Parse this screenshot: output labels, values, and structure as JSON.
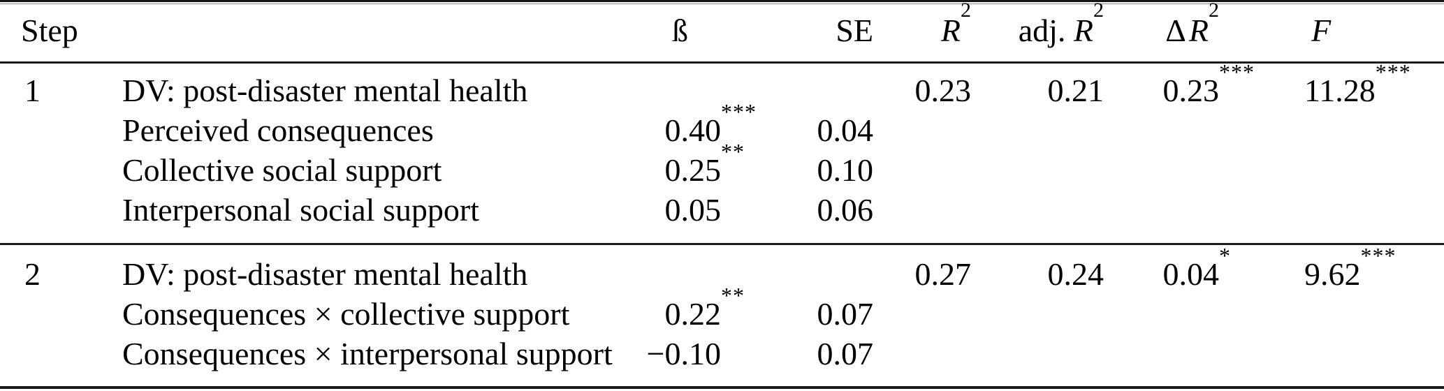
{
  "colors": {
    "background": "#ffffff",
    "text": "#000000",
    "rule_thick": "#161616",
    "rule_thin": "#8f8f8f"
  },
  "table": {
    "headers": {
      "step": "Step",
      "beta": "ß",
      "se": "SE",
      "r2_base": "R",
      "r2_sup": "2",
      "adj_prefix": "adj.",
      "adj_base": "R",
      "adj_sup": "2",
      "delta_prefix": "Δ",
      "delta_base": "R",
      "delta_sup": "2",
      "f": "F"
    },
    "blocks": [
      {
        "step": "1",
        "rows": [
          {
            "label": "DV: post-disaster mental health",
            "beta": "",
            "beta_stars": "",
            "se": "",
            "r2": "0.23",
            "adj_r2": "0.21",
            "delta_r2": "0.23",
            "delta_r2_stars": "***",
            "f": "11.28",
            "f_stars": "***"
          },
          {
            "label": "Perceived consequences",
            "beta": "0.40",
            "beta_stars": "***",
            "se": "0.04",
            "r2": "",
            "adj_r2": "",
            "delta_r2": "",
            "delta_r2_stars": "",
            "f": "",
            "f_stars": ""
          },
          {
            "label": "Collective social support",
            "beta": "0.25",
            "beta_stars": "**",
            "se": "0.10",
            "r2": "",
            "adj_r2": "",
            "delta_r2": "",
            "delta_r2_stars": "",
            "f": "",
            "f_stars": ""
          },
          {
            "label": "Interpersonal social support",
            "beta": "0.05",
            "beta_stars": "",
            "se": "0.06",
            "r2": "",
            "adj_r2": "",
            "delta_r2": "",
            "delta_r2_stars": "",
            "f": "",
            "f_stars": ""
          }
        ]
      },
      {
        "step": "2",
        "rows": [
          {
            "label": "DV: post-disaster mental health",
            "beta": "",
            "beta_stars": "",
            "se": "",
            "r2": "0.27",
            "adj_r2": "0.24",
            "delta_r2": "0.04",
            "delta_r2_stars": "*",
            "f": "9.62",
            "f_stars": "***"
          },
          {
            "label": "Consequences × collective support",
            "beta": "0.22",
            "beta_stars": "**",
            "se": "0.07",
            "r2": "",
            "adj_r2": "",
            "delta_r2": "",
            "delta_r2_stars": "",
            "f": "",
            "f_stars": ""
          },
          {
            "label": "Consequences × interpersonal support",
            "beta": "−0.10",
            "beta_stars": "",
            "se": "0.07",
            "r2": "",
            "adj_r2": "",
            "delta_r2": "",
            "delta_r2_stars": "",
            "f": "",
            "f_stars": ""
          }
        ]
      }
    ]
  }
}
